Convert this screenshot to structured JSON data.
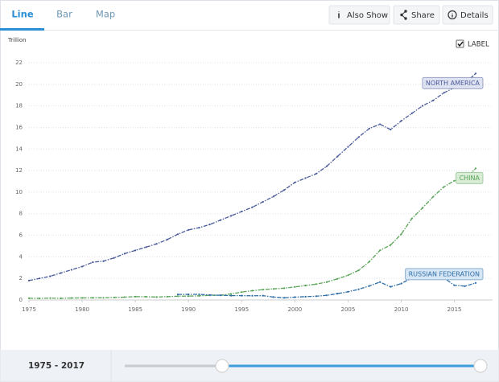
{
  "ui": {
    "tabs": [
      "Line",
      "Bar",
      "Map"
    ],
    "active_tab": 0,
    "buttons": [
      "Also Show",
      "Share",
      "Details"
    ],
    "checkbox_label": "LABEL",
    "labels_shown": true,
    "range_label": "1975 - 2017"
  },
  "chart_data": {
    "type": "line",
    "y_unit": "Trillion",
    "x": [
      1975,
      1976,
      1977,
      1978,
      1979,
      1980,
      1981,
      1982,
      1983,
      1984,
      1985,
      1986,
      1987,
      1988,
      1989,
      1990,
      1991,
      1992,
      1993,
      1994,
      1995,
      1996,
      1997,
      1998,
      1999,
      2000,
      2001,
      2002,
      2003,
      2004,
      2005,
      2006,
      2007,
      2008,
      2009,
      2010,
      2011,
      2012,
      2013,
      2014,
      2015,
      2016,
      2017
    ],
    "xlim": [
      1975,
      2017
    ],
    "xticks": [
      1975,
      1980,
      1985,
      1990,
      1995,
      2000,
      2005,
      2010,
      2015
    ],
    "ylim": [
      0,
      22
    ],
    "yticks": [
      0,
      2,
      4,
      6,
      8,
      10,
      12,
      14,
      16,
      18,
      20,
      22
    ],
    "grid": true,
    "series": [
      {
        "name": "NORTH AMERICA",
        "color": "#4a5b9b",
        "values": [
          1.8,
          2.0,
          2.2,
          2.5,
          2.8,
          3.1,
          3.5,
          3.6,
          3.9,
          4.3,
          4.6,
          4.9,
          5.2,
          5.6,
          6.1,
          6.5,
          6.7,
          7.0,
          7.4,
          7.8,
          8.2,
          8.6,
          9.1,
          9.6,
          10.2,
          10.9,
          11.3,
          11.7,
          12.4,
          13.3,
          14.2,
          15.1,
          15.9,
          16.3,
          15.8,
          16.6,
          17.3,
          18.0,
          18.5,
          19.2,
          19.7,
          20.1,
          21.0
        ]
      },
      {
        "name": "CHINA",
        "color": "#5aa45a",
        "values": [
          0.16,
          0.15,
          0.17,
          0.15,
          0.18,
          0.19,
          0.2,
          0.2,
          0.23,
          0.26,
          0.31,
          0.3,
          0.27,
          0.31,
          0.35,
          0.36,
          0.38,
          0.43,
          0.44,
          0.56,
          0.73,
          0.86,
          0.96,
          1.03,
          1.09,
          1.21,
          1.34,
          1.47,
          1.66,
          1.96,
          2.29,
          2.75,
          3.55,
          4.6,
          5.1,
          6.1,
          7.55,
          8.53,
          9.57,
          10.48,
          11.06,
          11.19,
          12.2
        ]
      },
      {
        "name": "RUSSIAN FEDERATION",
        "color": "#2f6fa8",
        "values": [
          null,
          null,
          null,
          null,
          null,
          null,
          null,
          null,
          null,
          null,
          null,
          null,
          null,
          null,
          0.51,
          0.52,
          0.52,
          0.46,
          0.44,
          0.4,
          0.4,
          0.39,
          0.4,
          0.27,
          0.2,
          0.26,
          0.31,
          0.35,
          0.43,
          0.59,
          0.76,
          0.99,
          1.3,
          1.66,
          1.22,
          1.52,
          2.05,
          2.21,
          2.29,
          2.06,
          1.36,
          1.28,
          1.58
        ]
      }
    ]
  }
}
